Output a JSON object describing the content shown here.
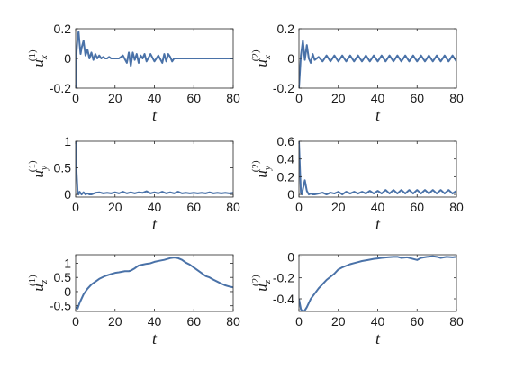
{
  "figure": {
    "background": "#ffffff",
    "line_color": "#4a72a8",
    "axis_color": "#262626"
  },
  "chart_data": [
    {
      "id": "ux1",
      "type": "line",
      "xlabel": "t",
      "ylabel": {
        "main": "u",
        "sub": "x",
        "sup": "(1)"
      },
      "xlim": [
        0,
        80
      ],
      "ylim": [
        -0.2,
        0.2
      ],
      "xticks": [
        "0",
        "20",
        "40",
        "60",
        "80"
      ],
      "yticks": [
        "-0.2",
        "0",
        "0.2"
      ],
      "series": [
        {
          "x": [
            0,
            0.5,
            1,
            1.5,
            2,
            2.5,
            3,
            4,
            5,
            6,
            7,
            8,
            9,
            10,
            11,
            12,
            13,
            14,
            15,
            16,
            17,
            18,
            20,
            22,
            24,
            26,
            27,
            28,
            29,
            30,
            31,
            32,
            33,
            34,
            35,
            36,
            38,
            40,
            42,
            44,
            45,
            46,
            47,
            48,
            49,
            50,
            52,
            55,
            60,
            65,
            70,
            75,
            80
          ],
          "y": [
            -0.2,
            0.05,
            0.14,
            0.18,
            0.1,
            0.03,
            0.07,
            0.12,
            0.02,
            0.06,
            0.0,
            0.04,
            -0.01,
            0.03,
            0.0,
            0.02,
            0.0,
            0.01,
            0.0,
            0.0,
            0.01,
            0.0,
            0.0,
            0.0,
            0.02,
            -0.03,
            0.04,
            -0.05,
            0.04,
            -0.01,
            0.03,
            -0.03,
            0.02,
            0.0,
            0.03,
            -0.02,
            0.03,
            -0.02,
            0.02,
            -0.03,
            0.03,
            -0.02,
            0.03,
            0.01,
            -0.02,
            0.0,
            0.0,
            0.0,
            0.0,
            0.0,
            0.0,
            0.0,
            0.0
          ]
        }
      ]
    },
    {
      "id": "ux2",
      "type": "line",
      "xlabel": "t",
      "ylabel": {
        "main": "u",
        "sub": "x",
        "sup": "(2)"
      },
      "xlim": [
        0,
        80
      ],
      "ylim": [
        -0.2,
        0.2
      ],
      "xticks": [
        "0",
        "20",
        "40",
        "60",
        "80"
      ],
      "yticks": [
        "-0.2",
        "0",
        "0.2"
      ],
      "series": [
        {
          "x": [
            0,
            1,
            2,
            3,
            4,
            5,
            6,
            7,
            8,
            10,
            12,
            14,
            16,
            18,
            20,
            22,
            24,
            26,
            28,
            30,
            32,
            34,
            36,
            38,
            40,
            42,
            44,
            46,
            48,
            50,
            52,
            54,
            56,
            58,
            60,
            62,
            64,
            66,
            68,
            70,
            72,
            74,
            76,
            78,
            80
          ],
          "y": [
            -0.2,
            0.02,
            0.12,
            -0.01,
            0.09,
            0.0,
            -0.03,
            0.03,
            -0.01,
            0.01,
            -0.02,
            0.02,
            -0.02,
            0.02,
            -0.02,
            0.02,
            -0.02,
            0.02,
            -0.02,
            0.02,
            -0.02,
            0.02,
            -0.02,
            0.02,
            -0.02,
            0.02,
            -0.02,
            0.02,
            -0.02,
            0.02,
            -0.02,
            0.02,
            -0.02,
            0.02,
            -0.02,
            0.02,
            -0.02,
            0.02,
            -0.02,
            0.02,
            -0.02,
            0.02,
            -0.02,
            0.02,
            -0.02
          ]
        }
      ]
    },
    {
      "id": "uy1",
      "type": "line",
      "xlabel": "t",
      "ylabel": {
        "main": "u",
        "sub": "y",
        "sup": "(1)"
      },
      "xlim": [
        0,
        80
      ],
      "ylim": [
        -0.05,
        1.0
      ],
      "xticks": [
        "0",
        "20",
        "40",
        "60",
        "80"
      ],
      "yticks": [
        "0",
        "0.5",
        "1"
      ],
      "series": [
        {
          "x": [
            0,
            0.5,
            1,
            1.5,
            2,
            3,
            4,
            5,
            6,
            7,
            8,
            10,
            12,
            14,
            16,
            18,
            20,
            22,
            24,
            26,
            28,
            30,
            32,
            34,
            36,
            38,
            40,
            42,
            44,
            46,
            48,
            50,
            52,
            54,
            56,
            58,
            60,
            62,
            64,
            66,
            68,
            70,
            72,
            74,
            76,
            78,
            80
          ],
          "y": [
            1.0,
            0.4,
            0.05,
            0.0,
            0.05,
            0.0,
            0.04,
            0.0,
            0.02,
            0.0,
            0.0,
            0.03,
            0.04,
            0.02,
            0.03,
            0.02,
            0.04,
            0.02,
            0.05,
            0.02,
            0.04,
            0.02,
            0.04,
            0.03,
            0.06,
            0.02,
            0.04,
            0.02,
            0.05,
            0.02,
            0.04,
            0.02,
            0.05,
            0.02,
            0.03,
            0.02,
            0.03,
            0.02,
            0.03,
            0.02,
            0.04,
            0.02,
            0.03,
            0.02,
            0.03,
            0.02,
            0.03
          ]
        }
      ]
    },
    {
      "id": "uy2",
      "type": "line",
      "xlabel": "t",
      "ylabel": {
        "main": "u",
        "sub": "y",
        "sup": "(2)"
      },
      "xlim": [
        0,
        80
      ],
      "ylim": [
        -0.03,
        0.6
      ],
      "xticks": [
        "0",
        "20",
        "40",
        "60",
        "80"
      ],
      "yticks": [
        "0",
        "0.2",
        "0.4",
        "0.6"
      ],
      "series": [
        {
          "x": [
            0,
            0.5,
            1,
            1.5,
            2,
            3,
            4,
            5,
            6,
            7,
            8,
            10,
            12,
            14,
            16,
            18,
            20,
            22,
            24,
            26,
            28,
            30,
            32,
            34,
            36,
            38,
            40,
            42,
            44,
            46,
            48,
            50,
            52,
            54,
            56,
            58,
            60,
            62,
            64,
            66,
            68,
            70,
            72,
            74,
            76,
            78,
            80
          ],
          "y": [
            0.6,
            0.3,
            0.02,
            0.0,
            0.06,
            0.16,
            0.04,
            0.0,
            0.01,
            0.0,
            0.0,
            0.01,
            0.02,
            0.0,
            0.02,
            0.01,
            0.03,
            0.0,
            0.03,
            0.01,
            0.03,
            0.01,
            0.03,
            0.01,
            0.04,
            0.01,
            0.04,
            0.01,
            0.05,
            0.01,
            0.05,
            0.01,
            0.05,
            0.01,
            0.05,
            0.01,
            0.05,
            0.01,
            0.05,
            0.01,
            0.05,
            0.01,
            0.05,
            0.01,
            0.05,
            0.01,
            0.04
          ]
        }
      ]
    },
    {
      "id": "uz1",
      "type": "line",
      "xlabel": "t",
      "ylabel": {
        "main": "u",
        "sub": "z",
        "sup": "(1)"
      },
      "xlim": [
        0,
        80
      ],
      "ylim": [
        -0.7,
        1.3
      ],
      "xticks": [
        "0",
        "20",
        "40",
        "60",
        "80"
      ],
      "yticks": [
        "-0.5",
        "0",
        "0.5",
        "1"
      ],
      "series": [
        {
          "x": [
            0,
            1,
            2,
            4,
            6,
            8,
            10,
            12,
            15,
            18,
            20,
            22,
            25,
            27,
            28,
            30,
            32,
            34,
            36,
            38,
            40,
            42,
            45,
            48,
            50,
            52,
            54,
            56,
            58,
            60,
            62,
            64,
            66,
            68,
            70,
            72,
            74,
            76,
            78,
            80
          ],
          "y": [
            -0.55,
            -0.6,
            -0.4,
            -0.1,
            0.1,
            0.25,
            0.35,
            0.45,
            0.55,
            0.62,
            0.66,
            0.68,
            0.72,
            0.72,
            0.74,
            0.82,
            0.92,
            0.95,
            0.98,
            1.0,
            1.05,
            1.08,
            1.12,
            1.18,
            1.2,
            1.18,
            1.12,
            1.02,
            0.95,
            0.85,
            0.75,
            0.65,
            0.55,
            0.5,
            0.42,
            0.35,
            0.28,
            0.22,
            0.18,
            0.15
          ]
        }
      ]
    },
    {
      "id": "uz2",
      "type": "line",
      "xlabel": "t",
      "ylabel": {
        "main": "u",
        "sub": "z",
        "sup": "(2)"
      },
      "xlim": [
        0,
        80
      ],
      "ylim": [
        -0.52,
        0.02
      ],
      "xticks": [
        "0",
        "20",
        "40",
        "60",
        "80"
      ],
      "yticks": [
        "-0.4",
        "-0.2",
        "0"
      ],
      "series": [
        {
          "x": [
            0,
            1,
            2,
            3,
            4,
            5,
            6,
            8,
            10,
            12,
            14,
            16,
            18,
            20,
            22,
            24,
            26,
            28,
            30,
            32,
            35,
            38,
            40,
            42,
            45,
            48,
            50,
            52,
            55,
            58,
            60,
            62,
            65,
            68,
            70,
            72,
            75,
            78,
            80
          ],
          "y": [
            -0.4,
            -0.5,
            -0.52,
            -0.51,
            -0.48,
            -0.44,
            -0.4,
            -0.35,
            -0.3,
            -0.26,
            -0.22,
            -0.19,
            -0.16,
            -0.12,
            -0.1,
            -0.085,
            -0.07,
            -0.06,
            -0.05,
            -0.04,
            -0.03,
            -0.02,
            -0.015,
            -0.01,
            -0.005,
            0.0,
            0.0,
            -0.01,
            -0.005,
            -0.02,
            -0.03,
            -0.01,
            0.0,
            0.005,
            0.0,
            -0.01,
            0.0,
            -0.005,
            0.0
          ]
        }
      ]
    }
  ]
}
